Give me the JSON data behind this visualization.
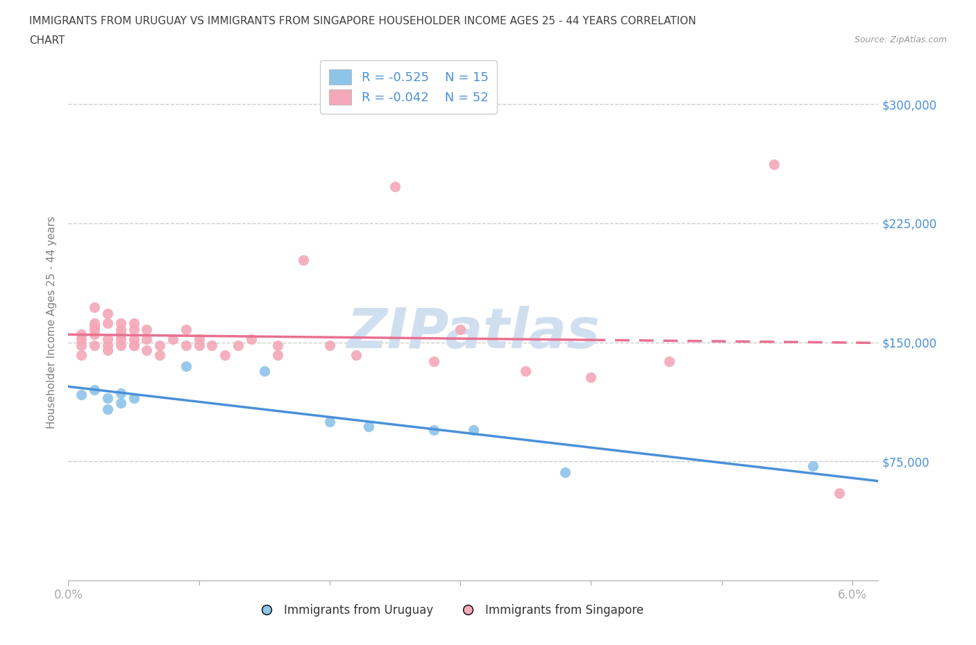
{
  "title_line1": "IMMIGRANTS FROM URUGUAY VS IMMIGRANTS FROM SINGAPORE HOUSEHOLDER INCOME AGES 25 - 44 YEARS CORRELATION",
  "title_line2": "CHART",
  "source": "Source: ZipAtlas.com",
  "ylabel": "Householder Income Ages 25 - 44 years",
  "xlim": [
    0.0,
    0.062
  ],
  "ylim": [
    0,
    325000
  ],
  "yticks": [
    75000,
    150000,
    225000,
    300000
  ],
  "xticks": [
    0.0,
    0.01,
    0.02,
    0.03,
    0.04,
    0.05,
    0.06
  ],
  "ytick_labels": [
    "$75,000",
    "$150,000",
    "$225,000",
    "$300,000"
  ],
  "uruguay_color": "#8ec4e8",
  "singapore_color": "#f4a8b8",
  "trend_uruguay_color": "#4a90d9",
  "trend_singapore_color": "#e87090",
  "uruguay_R": -0.525,
  "uruguay_N": 15,
  "singapore_R": -0.042,
  "singapore_N": 52,
  "watermark": "ZIPatlas",
  "watermark_color": "#d0dff0",
  "legend_label_uruguay": "Immigrants from Uruguay",
  "legend_label_singapore": "Immigrants from Singapore",
  "uruguay_x": [
    0.001,
    0.002,
    0.003,
    0.003,
    0.004,
    0.004,
    0.005,
    0.009,
    0.015,
    0.02,
    0.023,
    0.028,
    0.031,
    0.038,
    0.057
  ],
  "uruguay_y": [
    117000,
    120000,
    115000,
    108000,
    118000,
    112000,
    115000,
    135000,
    132000,
    100000,
    97000,
    95000,
    95000,
    68000,
    72000
  ],
  "singapore_x": [
    0.001,
    0.001,
    0.001,
    0.001,
    0.002,
    0.002,
    0.002,
    0.002,
    0.002,
    0.002,
    0.003,
    0.003,
    0.003,
    0.003,
    0.003,
    0.004,
    0.004,
    0.004,
    0.004,
    0.004,
    0.005,
    0.005,
    0.005,
    0.005,
    0.005,
    0.006,
    0.006,
    0.006,
    0.007,
    0.007,
    0.008,
    0.009,
    0.009,
    0.01,
    0.01,
    0.011,
    0.012,
    0.013,
    0.014,
    0.016,
    0.016,
    0.018,
    0.02,
    0.022,
    0.025,
    0.028,
    0.03,
    0.035,
    0.04,
    0.046,
    0.054,
    0.059
  ],
  "singapore_y": [
    152000,
    148000,
    142000,
    155000,
    162000,
    158000,
    148000,
    155000,
    160000,
    172000,
    148000,
    162000,
    152000,
    145000,
    168000,
    155000,
    148000,
    152000,
    158000,
    162000,
    148000,
    152000,
    158000,
    162000,
    148000,
    152000,
    145000,
    158000,
    142000,
    148000,
    152000,
    148000,
    158000,
    148000,
    152000,
    148000,
    142000,
    148000,
    152000,
    142000,
    148000,
    202000,
    148000,
    142000,
    248000,
    138000,
    158000,
    132000,
    128000,
    138000,
    262000,
    55000
  ],
  "background_color": "#ffffff",
  "grid_color": "#cccccc",
  "title_color": "#404040",
  "tick_label_color": "#4a90d9",
  "axis_label_color": "#808080",
  "trend_solid_xlim_uruguay": [
    0.0,
    0.062
  ],
  "trend_solid_xlim_singapore": [
    0.0,
    0.04
  ],
  "trend_dashed_xlim_singapore": [
    0.04,
    0.062
  ]
}
